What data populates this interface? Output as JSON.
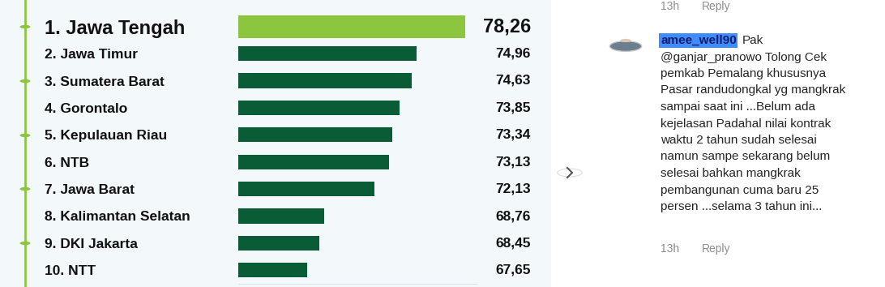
{
  "chart_data": {
    "type": "bar",
    "orientation": "horizontal",
    "categories": [
      "1. Jawa Tengah",
      "2. Jawa Timur",
      "3. Sumatera Barat",
      "4. Gorontalo",
      "5. Kepulauan Riau",
      "6. NTB",
      "7. Jawa Barat",
      "8. Kalimantan Selatan",
      "9. DKI Jakarta",
      "10. NTT"
    ],
    "values": [
      78.26,
      74.96,
      74.63,
      73.85,
      73.34,
      73.13,
      72.13,
      68.76,
      68.45,
      67.65
    ],
    "value_labels": [
      "78,26",
      "74,96",
      "74,63",
      "73,85",
      "73,34",
      "73,13",
      "72,13",
      "68,76",
      "68,45",
      "67,65"
    ],
    "colors": [
      "#8cc63f",
      "#0a5c36",
      "#0a5c36",
      "#0a5c36",
      "#0a5c36",
      "#0a5c36",
      "#0a5c36",
      "#0a5c36",
      "#0a5c36",
      "#0a5c36"
    ],
    "xlim": [
      63,
      79
    ],
    "xticks": [],
    "data_labels": true,
    "tick_labels": "y"
  },
  "comment": {
    "username": "amee_well90",
    "text_lines": [
      "Pak",
      "@ganjar_pranowo Tolong Cek",
      "pemkab Pemalang khususnya",
      "Pasar randudongkal yg mangkrak",
      "sampai saat ini ...Belum ada",
      "kejelasan Padahal nilai kontrak",
      "waktu 2 tahun sudah selesai",
      "namun sampe sekarang belum",
      "selesai bahkan mangkrak",
      "pembangunan cuma baru 25",
      "persen ...selama 3 tahun ini..."
    ],
    "time": "13h",
    "action": "Reply"
  },
  "previous_comment": {
    "time": "13h",
    "action": "Reply"
  }
}
